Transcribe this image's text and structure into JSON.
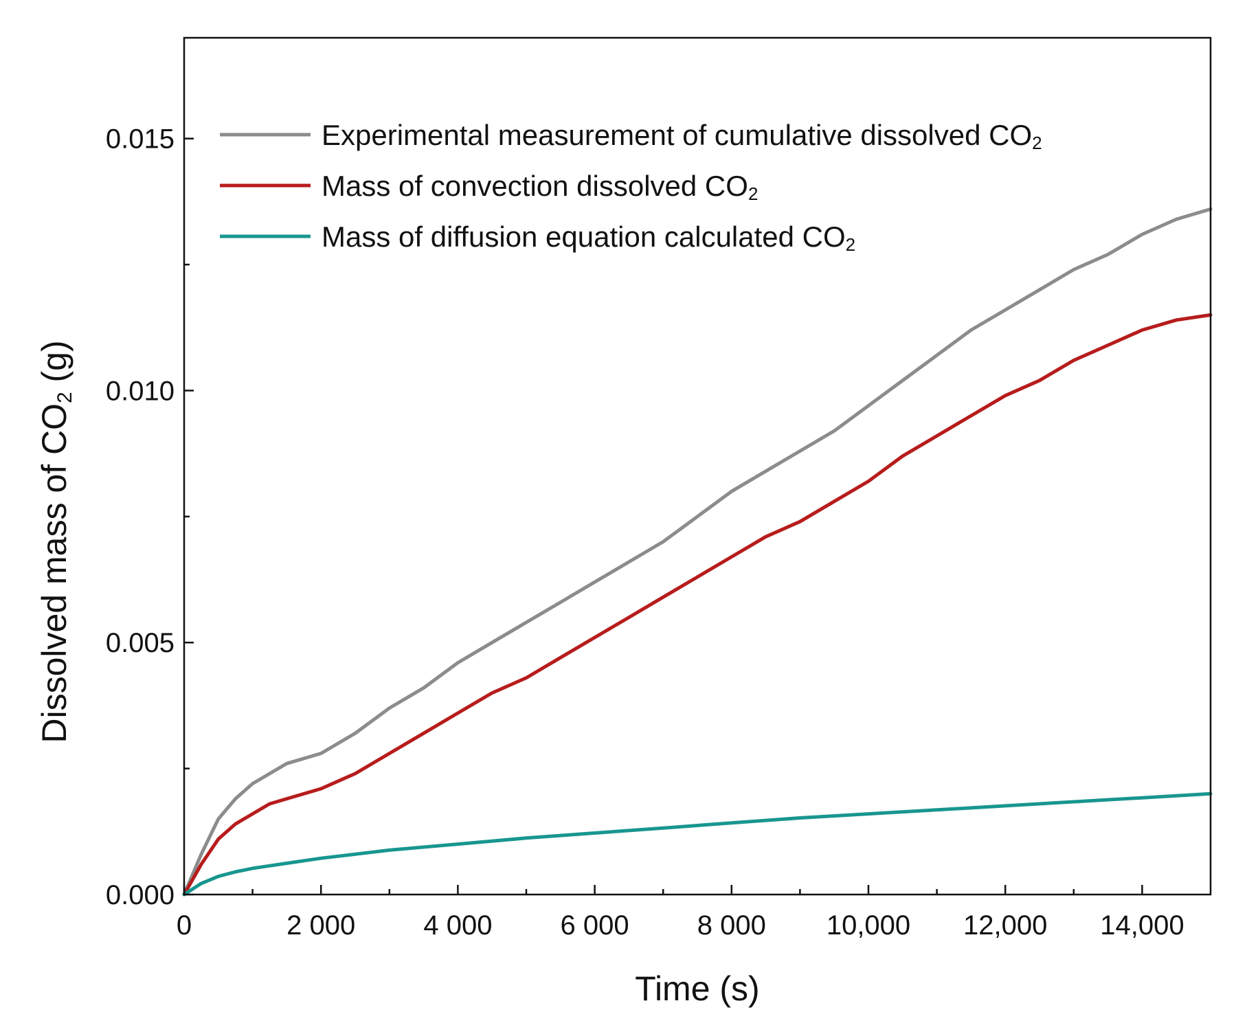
{
  "chart_data": {
    "type": "line",
    "title": "",
    "xlabel": "Time (s)",
    "ylabel": {
      "prefix": "Dissolved mass of CO",
      "sub": "2",
      "suffix": " (g)"
    },
    "xlim": [
      0,
      15000
    ],
    "ylim": [
      0,
      0.017
    ],
    "grid": false,
    "legend_position": "top-left",
    "x_ticks": [
      {
        "value": 0,
        "label": "0"
      },
      {
        "value": 2000,
        "label": "2 000"
      },
      {
        "value": 4000,
        "label": "4 000"
      },
      {
        "value": 6000,
        "label": "6 000"
      },
      {
        "value": 8000,
        "label": "8 000"
      },
      {
        "value": 10000,
        "label": "10,000"
      },
      {
        "value": 12000,
        "label": "12,000"
      },
      {
        "value": 14000,
        "label": "14,000"
      }
    ],
    "x_minor_ticks": [
      1000,
      3000,
      5000,
      7000,
      9000,
      11000,
      13000
    ],
    "y_ticks": [
      {
        "value": 0,
        "label": "0.000"
      },
      {
        "value": 0.005,
        "label": "0.005"
      },
      {
        "value": 0.01,
        "label": "0.010"
      },
      {
        "value": 0.015,
        "label": "0.015"
      }
    ],
    "y_minor_ticks": [
      0.0025,
      0.0075,
      0.0125
    ],
    "series": [
      {
        "name": "Experimental measurement of cumulative dissolved CO",
        "name_sub": "2",
        "color": "#8c8c8c",
        "x": [
          0,
          250,
          500,
          750,
          1000,
          1250,
          1500,
          2000,
          2500,
          3000,
          3500,
          4000,
          4500,
          5000,
          5500,
          6000,
          6500,
          7000,
          7500,
          8000,
          8500,
          9000,
          9500,
          10000,
          10500,
          11000,
          11500,
          12000,
          12500,
          13000,
          13500,
          14000,
          14500,
          15000
        ],
        "y": [
          0,
          0.0008,
          0.0015,
          0.0019,
          0.0022,
          0.0024,
          0.0026,
          0.0028,
          0.0032,
          0.0037,
          0.0041,
          0.0046,
          0.005,
          0.0054,
          0.0058,
          0.0062,
          0.0066,
          0.007,
          0.0075,
          0.008,
          0.0084,
          0.0088,
          0.0092,
          0.0097,
          0.0102,
          0.0107,
          0.0112,
          0.0116,
          0.012,
          0.0124,
          0.0127,
          0.0131,
          0.0134,
          0.0136
        ]
      },
      {
        "name": "Mass of convection dissolved CO",
        "name_sub": "2",
        "color": "#b71c1c",
        "x": [
          0,
          250,
          500,
          750,
          1000,
          1250,
          1500,
          2000,
          2500,
          3000,
          3500,
          4000,
          4500,
          5000,
          5500,
          6000,
          6500,
          7000,
          7500,
          8000,
          8500,
          9000,
          9500,
          10000,
          10500,
          11000,
          11500,
          12000,
          12500,
          13000,
          13500,
          14000,
          14500,
          15000
        ],
        "y": [
          0,
          0.0006,
          0.0011,
          0.0014,
          0.0016,
          0.0018,
          0.0019,
          0.0021,
          0.0024,
          0.0028,
          0.0032,
          0.0036,
          0.004,
          0.0043,
          0.0047,
          0.0051,
          0.0055,
          0.0059,
          0.0063,
          0.0067,
          0.0071,
          0.0074,
          0.0078,
          0.0082,
          0.0087,
          0.0091,
          0.0095,
          0.0099,
          0.0102,
          0.0106,
          0.0109,
          0.0112,
          0.0114,
          0.0115
        ]
      },
      {
        "name": "Mass of diffusion equation calculated CO",
        "name_sub": "2",
        "color": "#18968f",
        "x": [
          0,
          250,
          500,
          750,
          1000,
          1500,
          2000,
          3000,
          4000,
          5000,
          6000,
          7000,
          8000,
          9000,
          10000,
          11000,
          12000,
          13000,
          14000,
          15000
        ],
        "y": [
          0,
          0.00022,
          0.00036,
          0.00045,
          0.00052,
          0.00062,
          0.00072,
          0.00088,
          0.001,
          0.00112,
          0.00122,
          0.00132,
          0.00142,
          0.00152,
          0.0016,
          0.00168,
          0.00176,
          0.00184,
          0.00192,
          0.002
        ]
      }
    ]
  }
}
